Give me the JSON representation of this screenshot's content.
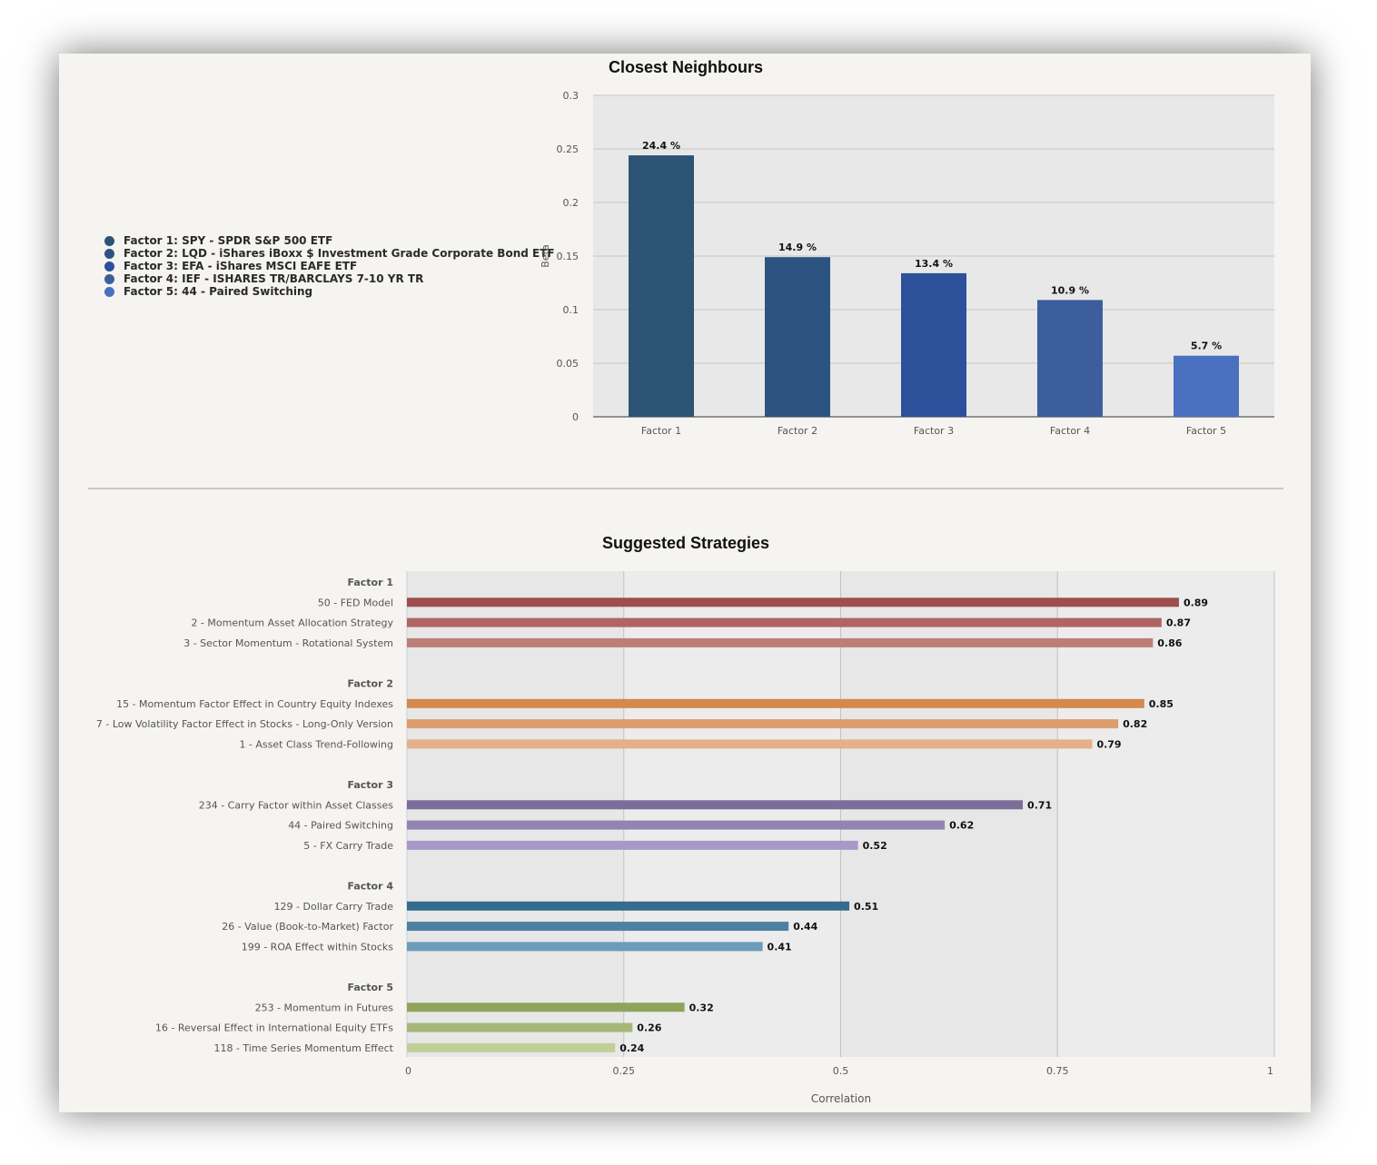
{
  "chart_data": [
    {
      "type": "bar",
      "title": "Closest Neighbours",
      "ylabel": "Beta",
      "xlabel": "",
      "ylim": [
        0,
        0.3
      ],
      "yticks": [
        "0",
        "0.05",
        "0.1",
        "0.15",
        "0.2",
        "0.25",
        "0.3"
      ],
      "categories": [
        "Factor 1",
        "Factor 2",
        "Factor 3",
        "Factor 4",
        "Factor 5"
      ],
      "values": [
        0.244,
        0.149,
        0.134,
        0.109,
        0.057
      ],
      "data_labels": [
        "24.4 %",
        "14.9 %",
        "13.4 %",
        "10.9 %",
        "5.7 %"
      ],
      "colors": [
        "#2d5474",
        "#2d5480",
        "#2c519a",
        "#3d5e9e",
        "#4a70c0"
      ],
      "legend_position": "left",
      "legend": [
        "Factor 1: SPY - SPDR S&P 500 ETF",
        "Factor 2: LQD - iShares iBoxx $ Investment Grade Corporate Bond ETF",
        "Factor 3: EFA - iShares MSCI EAFE ETF",
        "Factor 4: IEF - ISHARES TR/BARCLAYS 7-10 YR TR",
        "Factor 5: 44 - Paired Switching"
      ],
      "grid": true
    },
    {
      "type": "bar",
      "orientation": "horizontal",
      "title": "Suggested Strategies",
      "xlabel": "Correlation",
      "xlim": [
        0,
        1
      ],
      "xticks": [
        "0",
        "0.25",
        "0.5",
        "0.75",
        "1"
      ],
      "grid": true,
      "groups": [
        {
          "name": "Factor 1",
          "items": [
            {
              "label": "50 - FED Model",
              "value": 0.89,
              "color": "#9e4e4e"
            },
            {
              "label": "2 - Momentum Asset Allocation Strategy",
              "value": 0.87,
              "color": "#b06464"
            },
            {
              "label": "3 - Sector Momentum - Rotational System",
              "value": 0.86,
              "color": "#bd7e78"
            }
          ]
        },
        {
          "name": "Factor 2",
          "items": [
            {
              "label": "15 - Momentum Factor Effect in Country Equity Indexes",
              "value": 0.85,
              "color": "#d4884c"
            },
            {
              "label": "7 - Low Volatility Factor Effect in Stocks - Long-Only Version",
              "value": 0.82,
              "color": "#dd9c6c"
            },
            {
              "label": "1 - Asset Class Trend-Following",
              "value": 0.79,
              "color": "#e3b08a"
            }
          ]
        },
        {
          "name": "Factor 3",
          "items": [
            {
              "label": "234 - Carry Factor within Asset Classes",
              "value": 0.71,
              "color": "#7c6d9a"
            },
            {
              "label": "44 - Paired Switching",
              "value": 0.62,
              "color": "#9283b0"
            },
            {
              "label": "5 - FX Carry Trade",
              "value": 0.52,
              "color": "#a898c6"
            }
          ]
        },
        {
          "name": "Factor 4",
          "items": [
            {
              "label": "129 - Dollar Carry Trade",
              "value": 0.51,
              "color": "#356b8f"
            },
            {
              "label": "26 - Value (Book-to-Market) Factor",
              "value": 0.44,
              "color": "#4f80a2"
            },
            {
              "label": "199 - ROA Effect within Stocks",
              "value": 0.41,
              "color": "#6d9bba"
            }
          ]
        },
        {
          "name": "Factor 5",
          "items": [
            {
              "label": "253 - Momentum in Futures",
              "value": 0.32,
              "color": "#8fa45a"
            },
            {
              "label": "16 - Reversal Effect in International Equity ETFs",
              "value": 0.26,
              "color": "#a6b778"
            },
            {
              "label": "118 - Time Series Momentum Effect",
              "value": 0.24,
              "color": "#c1cf98"
            }
          ]
        }
      ]
    }
  ]
}
